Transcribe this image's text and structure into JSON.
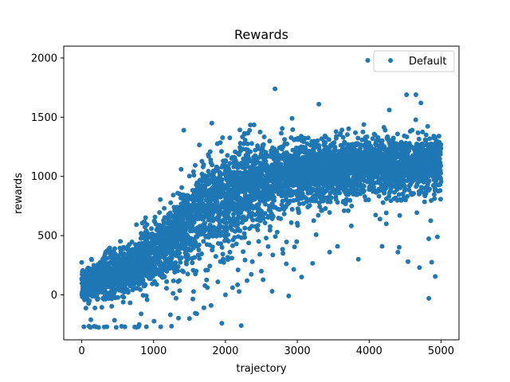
{
  "chart_data": {
    "type": "scatter",
    "title": "Rewards",
    "xlabel": "trajectory",
    "ylabel": "rewards",
    "xlim": [
      -250,
      5250
    ],
    "ylim": [
      -380,
      2100
    ],
    "xticks": [
      0,
      1000,
      2000,
      3000,
      4000,
      5000
    ],
    "yticks": [
      0,
      500,
      1000,
      1500,
      2000
    ],
    "grid": false,
    "legend": {
      "position": "top-right",
      "entries": [
        "Default"
      ]
    },
    "series": [
      {
        "name": "Default",
        "color": "#1f77b4",
        "marker": "circle",
        "points_n": 5000,
        "trend": [
          [
            0,
            80
          ],
          [
            300,
            150
          ],
          [
            600,
            190
          ],
          [
            900,
            300
          ],
          [
            1200,
            460
          ],
          [
            1500,
            640
          ],
          [
            1800,
            780
          ],
          [
            2100,
            870
          ],
          [
            2400,
            940
          ],
          [
            2700,
            990
          ],
          [
            3000,
            1030
          ],
          [
            3500,
            1060
          ],
          [
            4000,
            1080
          ],
          [
            4500,
            1090
          ],
          [
            5000,
            1100
          ]
        ],
        "spread": [
          [
            0,
            70
          ],
          [
            1000,
            120
          ],
          [
            1500,
            170
          ],
          [
            2000,
            190
          ],
          [
            2500,
            170
          ],
          [
            3000,
            140
          ],
          [
            4000,
            120
          ],
          [
            5000,
            110
          ]
        ],
        "outliers": [
          [
            3980,
            1980
          ],
          [
            2690,
            1740
          ],
          [
            1420,
            1390
          ],
          [
            1810,
            1450
          ],
          [
            3300,
            1610
          ],
          [
            4520,
            1690
          ],
          [
            4650,
            1690
          ],
          [
            4720,
            1620
          ],
          [
            4180,
            410
          ],
          [
            4400,
            360
          ],
          [
            4540,
            280
          ],
          [
            4700,
            230
          ],
          [
            4830,
            -30
          ],
          [
            4870,
            275
          ],
          [
            4920,
            155
          ],
          [
            3060,
            150
          ],
          [
            2880,
            -10
          ],
          [
            2220,
            -260
          ],
          [
            1950,
            -240
          ],
          [
            800,
            -250
          ],
          [
            900,
            -270
          ],
          [
            1100,
            -270
          ],
          [
            1250,
            -265
          ],
          [
            600,
            -270
          ],
          [
            480,
            -275
          ],
          [
            350,
            -270
          ],
          [
            200,
            -270
          ],
          [
            100,
            -265
          ],
          [
            30,
            -270
          ],
          [
            1500,
            -200
          ],
          [
            1600,
            -160
          ],
          [
            1700,
            -110
          ],
          [
            1800,
            -90
          ],
          [
            2000,
            0
          ],
          [
            2100,
            60
          ],
          [
            2300,
            120
          ],
          [
            2500,
            200
          ],
          [
            2650,
            30
          ],
          [
            2800,
            350
          ],
          [
            3450,
            360
          ],
          [
            3850,
            300
          ],
          [
            3560,
            410
          ],
          [
            4150,
            640
          ],
          [
            4280,
            1560
          ]
        ]
      }
    ]
  }
}
